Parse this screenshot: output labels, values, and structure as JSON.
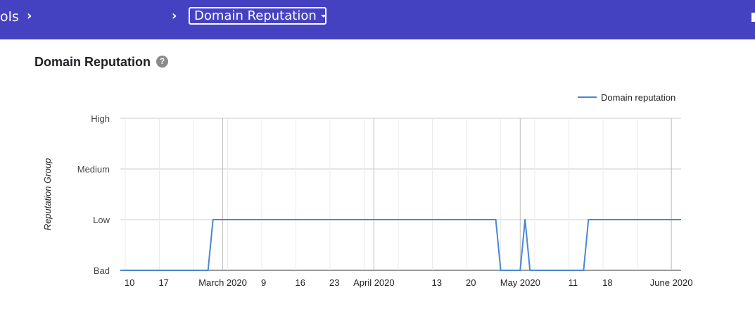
{
  "header": {
    "breadcrumb_partial": "ols",
    "dropdown_label": "Domain Reputation",
    "bg_color": "#4542c2"
  },
  "section": {
    "title": "Domain Reputation",
    "help_icon": "question-circle-icon"
  },
  "chart_data": {
    "type": "line",
    "ylabel": "Reputation Group",
    "y_categories": [
      "Bad",
      "Low",
      "Medium",
      "High"
    ],
    "x_ticks": [
      {
        "label": "10",
        "date": "2020-02-10",
        "major": false
      },
      {
        "label": "17",
        "date": "2020-02-17",
        "major": false
      },
      {
        "label": "March 2020",
        "date": "2020-03-01",
        "major": true
      },
      {
        "label": "9",
        "date": "2020-03-09",
        "major": false
      },
      {
        "label": "16",
        "date": "2020-03-16",
        "major": false
      },
      {
        "label": "23",
        "date": "2020-03-23",
        "major": false
      },
      {
        "label": "April 2020",
        "date": "2020-04-01",
        "major": true
      },
      {
        "label": "13",
        "date": "2020-04-13",
        "major": false
      },
      {
        "label": "20",
        "date": "2020-04-20",
        "major": false
      },
      {
        "label": "May 2020",
        "date": "2020-05-01",
        "major": true
      },
      {
        "label": "11",
        "date": "2020-05-11",
        "major": false
      },
      {
        "label": "18",
        "date": "2020-05-18",
        "major": false
      },
      {
        "label": "June 2020",
        "date": "2020-06-01",
        "major": true
      }
    ],
    "xlim": [
      "2020-02-09",
      "2020-06-03"
    ],
    "series": [
      {
        "name": "Domain reputation",
        "color": "#4a86d6",
        "points": [
          {
            "x": "2020-02-09",
            "y": "Bad"
          },
          {
            "x": "2020-02-27",
            "y": "Bad"
          },
          {
            "x": "2020-02-28",
            "y": "Low"
          },
          {
            "x": "2020-04-26",
            "y": "Low"
          },
          {
            "x": "2020-04-27",
            "y": "Bad"
          },
          {
            "x": "2020-05-01",
            "y": "Bad"
          },
          {
            "x": "2020-05-02",
            "y": "Low"
          },
          {
            "x": "2020-05-03",
            "y": "Bad"
          },
          {
            "x": "2020-05-14",
            "y": "Bad"
          },
          {
            "x": "2020-05-15",
            "y": "Low"
          },
          {
            "x": "2020-06-03",
            "y": "Low"
          }
        ]
      }
    ],
    "legend": "top-right",
    "grid": true
  }
}
